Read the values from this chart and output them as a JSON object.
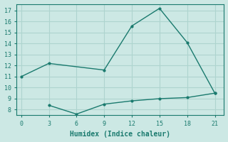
{
  "line1_x": [
    0,
    3,
    9,
    12,
    15,
    18,
    21
  ],
  "line1_y": [
    11.0,
    12.2,
    11.6,
    15.6,
    17.2,
    14.1,
    9.5
  ],
  "line2_x": [
    3,
    6,
    9,
    12,
    15,
    18,
    21
  ],
  "line2_y": [
    8.4,
    7.6,
    8.5,
    8.8,
    9.0,
    9.1,
    9.5
  ],
  "color": "#1a7a6e",
  "xlabel": "Humidex (Indice chaleur)",
  "xlim": [
    -0.5,
    22
  ],
  "ylim": [
    7.5,
    17.6
  ],
  "xticks": [
    0,
    3,
    6,
    9,
    12,
    15,
    18,
    21
  ],
  "yticks": [
    8,
    9,
    10,
    11,
    12,
    13,
    14,
    15,
    16,
    17
  ],
  "bg_color": "#cce8e4",
  "grid_color": "#aed4cf"
}
